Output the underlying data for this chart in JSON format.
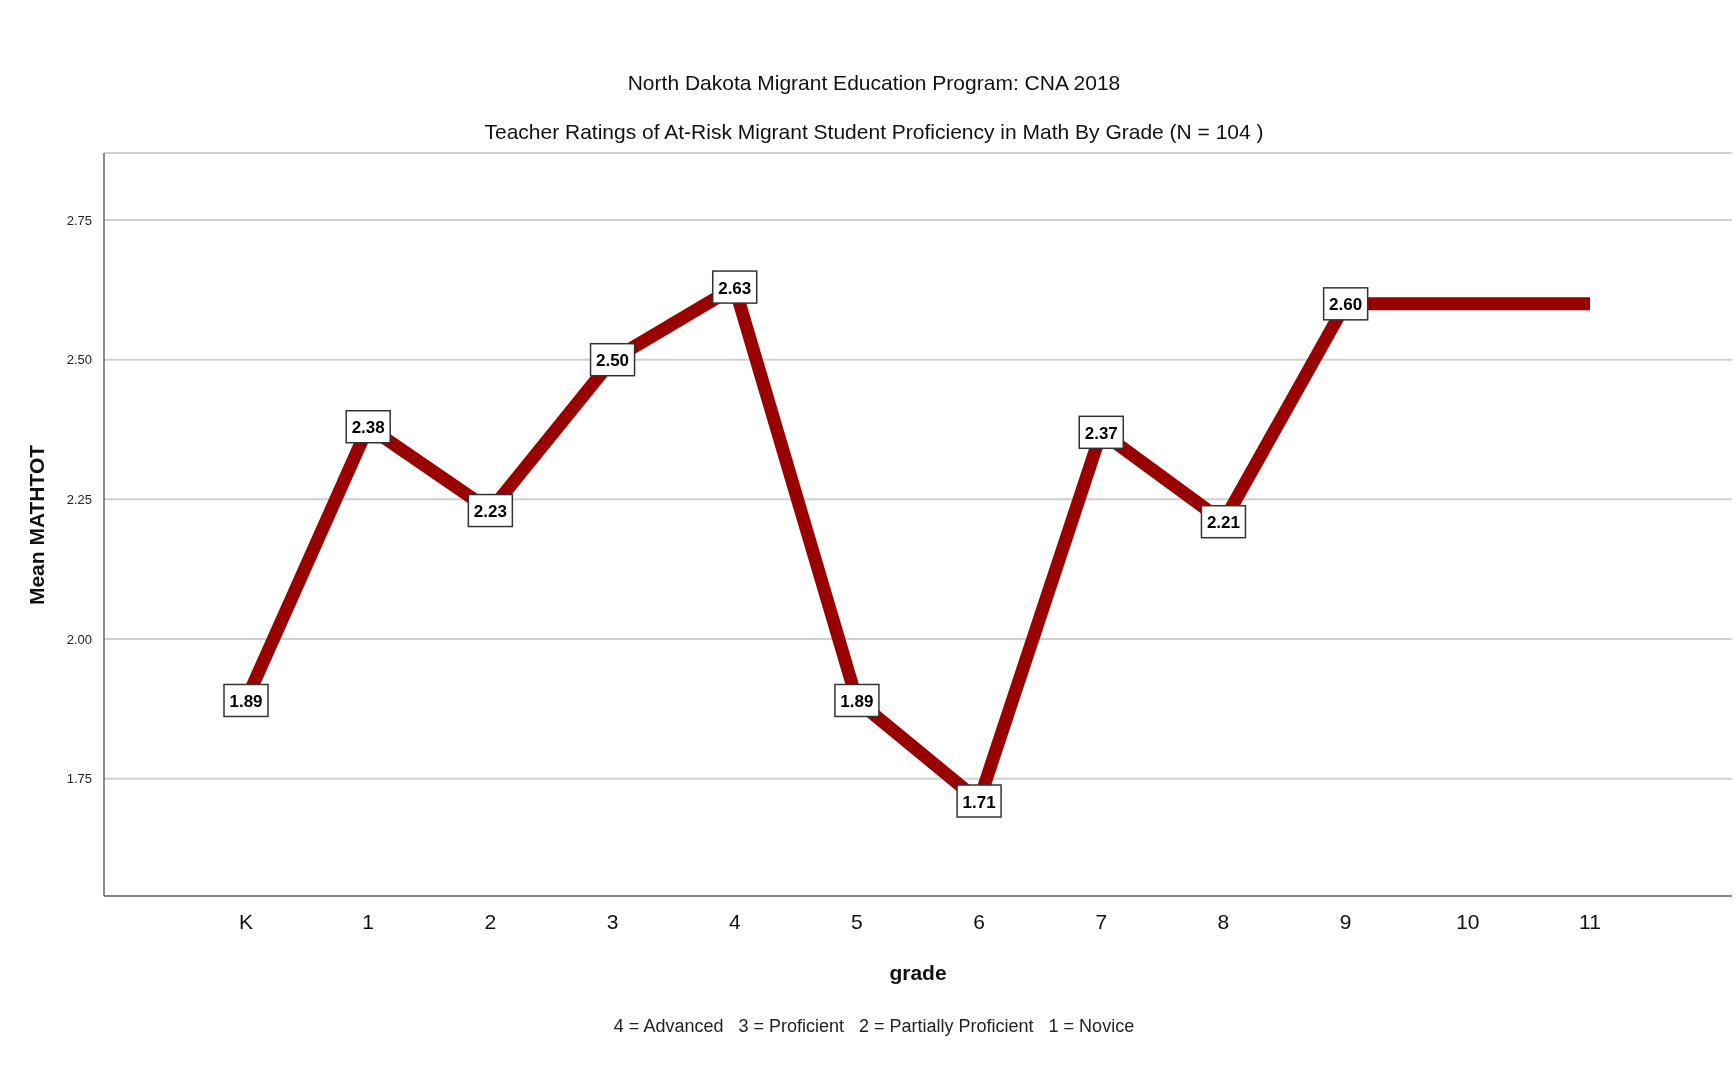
{
  "chart_data": {
    "type": "line",
    "title": "North Dakota Migrant Education Program: CNA 2018",
    "subtitle": "Teacher Ratings of At-Risk Migrant Student Proficiency in Math By Grade (N = 104 )",
    "xlabel": "grade",
    "ylabel": "Mean MATHTOT",
    "annotations": [
      "4 = Advanced   3 = Proficient   2 = Partially Proficient   1 = Novice"
    ],
    "categories": [
      "K",
      "1",
      "2",
      "3",
      "4",
      "5",
      "6",
      "7",
      "8",
      "9",
      "10",
      "11"
    ],
    "series": [
      {
        "color": "#990000",
        "values": [
          1.89,
          2.38,
          2.23,
          2.5,
          2.63,
          1.89,
          1.71,
          2.37,
          2.21,
          2.6,
          2.6,
          2.6
        ],
        "value_labels": [
          "1.89",
          "2.38",
          "2.23",
          "2.50",
          "2.63",
          "1.89",
          "1.71",
          "2.37",
          "2.21",
          "2.60",
          null,
          null
        ]
      }
    ],
    "ylim": [
      1.54,
      2.87
    ],
    "yticks": [
      1.75,
      {
        "value": 2,
        "label": "2.00"
      },
      2.25,
      {
        "value": 2.5,
        "label": "2.50"
      },
      2.75
    ],
    "grid": "y",
    "marker": "square",
    "line_style": "solid"
  }
}
